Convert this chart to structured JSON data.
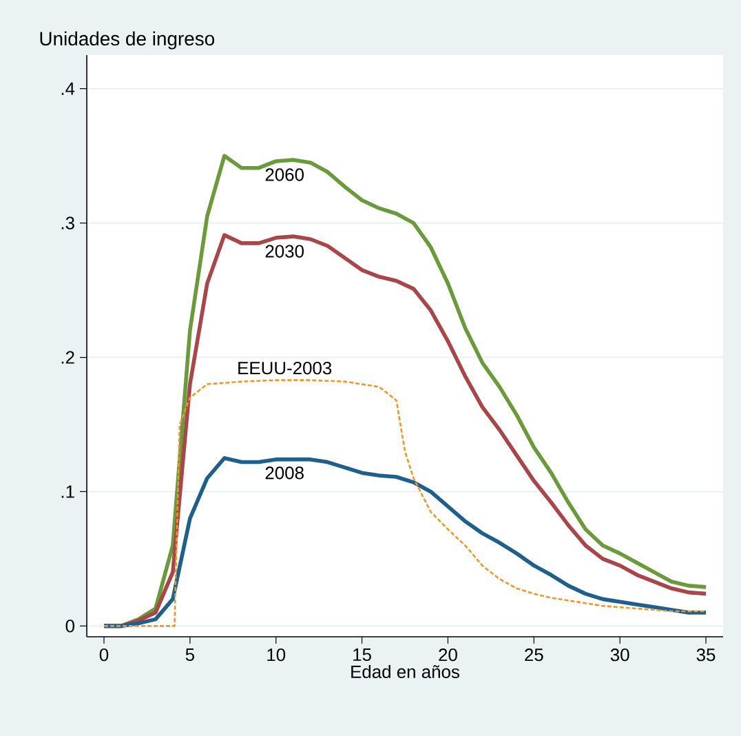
{
  "chart_data": {
    "type": "line",
    "ylabel": "Unidades de ingreso",
    "xlabel": "Edad en años",
    "x": [
      0,
      1,
      2,
      3,
      4,
      5,
      6,
      7,
      8,
      9,
      10,
      11,
      12,
      13,
      14,
      15,
      16,
      17,
      18,
      19,
      20,
      21,
      22,
      23,
      24,
      25,
      26,
      27,
      28,
      29,
      30,
      31,
      32,
      33,
      34,
      35
    ],
    "series": [
      {
        "name": "2060",
        "color": "#6b9a3a",
        "values": [
          0,
          0,
          0.005,
          0.013,
          0.06,
          0.22,
          0.305,
          0.35,
          0.341,
          0.341,
          0.346,
          0.347,
          0.345,
          0.338,
          0.327,
          0.317,
          0.311,
          0.307,
          0.3,
          0.282,
          0.255,
          0.222,
          0.196,
          0.178,
          0.157,
          0.133,
          0.114,
          0.092,
          0.072,
          0.06,
          0.054,
          0.047,
          0.04,
          0.033,
          0.03,
          0.029
        ]
      },
      {
        "name": "2030",
        "color": "#a8464a",
        "values": [
          0,
          0,
          0.004,
          0.01,
          0.04,
          0.18,
          0.255,
          0.291,
          0.285,
          0.285,
          0.289,
          0.29,
          0.288,
          0.283,
          0.274,
          0.265,
          0.26,
          0.257,
          0.251,
          0.235,
          0.212,
          0.186,
          0.163,
          0.146,
          0.127,
          0.108,
          0.092,
          0.075,
          0.06,
          0.05,
          0.045,
          0.038,
          0.033,
          0.028,
          0.025,
          0.024
        ]
      },
      {
        "name": "2008",
        "color": "#1f5f8b",
        "values": [
          0,
          0,
          0.002,
          0.005,
          0.02,
          0.08,
          0.11,
          0.125,
          0.122,
          0.122,
          0.124,
          0.124,
          0.124,
          0.122,
          0.118,
          0.114,
          0.112,
          0.111,
          0.107,
          0.1,
          0.089,
          0.078,
          0.069,
          0.062,
          0.054,
          0.045,
          0.038,
          0.03,
          0.024,
          0.02,
          0.018,
          0.016,
          0.014,
          0.012,
          0.01,
          0.01
        ]
      },
      {
        "name": "EEUU-2003",
        "color": "#f0962a",
        "line_style": "dashed",
        "x": [
          0,
          1,
          2,
          3,
          4.1,
          4.4,
          5,
          6,
          8,
          10,
          12,
          14,
          16,
          17,
          17.5,
          18,
          19,
          20,
          21,
          22,
          23,
          24,
          25,
          26,
          27,
          28,
          29,
          30,
          31,
          32,
          33,
          34,
          35
        ],
        "values": [
          0,
          0,
          0,
          0,
          0,
          0.15,
          0.17,
          0.18,
          0.182,
          0.183,
          0.183,
          0.182,
          0.178,
          0.168,
          0.13,
          0.11,
          0.085,
          0.072,
          0.06,
          0.045,
          0.035,
          0.028,
          0.024,
          0.021,
          0.019,
          0.017,
          0.015,
          0.014,
          0.013,
          0.012,
          0.011,
          0.011,
          0.011
        ]
      }
    ],
    "xlim": [
      -1,
      36
    ],
    "ylim": [
      -0.008,
      0.425
    ],
    "xticks": [
      0,
      5,
      10,
      15,
      20,
      25,
      30,
      35
    ],
    "yticks": [
      0,
      {
        "value": 0.1,
        "label": ".1"
      },
      {
        "value": 0.2,
        "label": ".2"
      },
      {
        "value": 0.3,
        "label": ".3"
      },
      {
        "value": 0.4,
        "label": ".4"
      }
    ],
    "grid": "y",
    "legend": false,
    "line_style": "solid",
    "marker": "none"
  }
}
